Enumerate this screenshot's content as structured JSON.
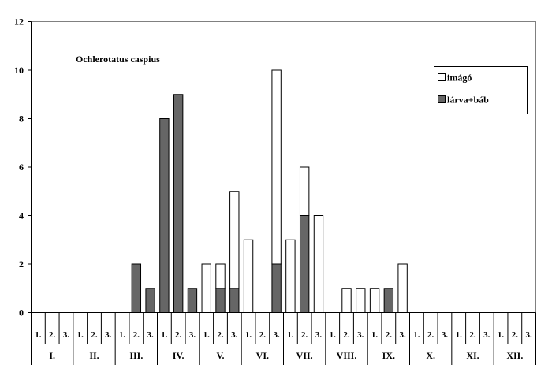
{
  "chart_data": {
    "type": "bar",
    "stacked": true,
    "title": "Ochlerotatus caspius",
    "xlabel": "",
    "ylabel": "",
    "ylim": [
      0,
      12
    ],
    "yticks": [
      0,
      2,
      4,
      6,
      8,
      10,
      12
    ],
    "grid": false,
    "legend_position": "top-right",
    "months": [
      "I.",
      "II.",
      "III.",
      "IV.",
      "V.",
      "VI.",
      "VII.",
      "VIII.",
      "IX.",
      "X.",
      "XI.",
      "XII."
    ],
    "decades": [
      "1.",
      "2.",
      "3."
    ],
    "categories": [
      "I.1",
      "I.2",
      "I.3",
      "II.1",
      "II.2",
      "II.3",
      "III.1",
      "III.2",
      "III.3",
      "IV.1",
      "IV.2",
      "IV.3",
      "V.1",
      "V.2",
      "V.3",
      "VI.1",
      "VI.2",
      "VI.3",
      "VII.1",
      "VII.2",
      "VII.3",
      "VIII.1",
      "VIII.2",
      "VIII.3",
      "IX.1",
      "IX.2",
      "IX.3",
      "X.1",
      "X.2",
      "X.3",
      "XI.1",
      "XI.2",
      "XI.3",
      "XII.1",
      "XII.2",
      "XII.3"
    ],
    "series": [
      {
        "name": "lárva+báb",
        "color": "#666666",
        "values": [
          0,
          0,
          0,
          0,
          0,
          0,
          0,
          2,
          1,
          8,
          9,
          1,
          0,
          1,
          1,
          0,
          0,
          2,
          0,
          4,
          0,
          0,
          0,
          0,
          0,
          1,
          0,
          0,
          0,
          0,
          0,
          0,
          0,
          0,
          0,
          0
        ]
      },
      {
        "name": "imágó",
        "color": "#ffffff",
        "values": [
          0,
          0,
          0,
          0,
          0,
          0,
          0,
          0,
          0,
          0,
          0,
          0,
          2,
          1,
          4,
          3,
          0,
          8,
          3,
          2,
          4,
          0,
          1,
          1,
          1,
          0,
          2,
          0,
          0,
          0,
          0,
          0,
          0,
          0,
          0,
          0
        ]
      }
    ]
  }
}
